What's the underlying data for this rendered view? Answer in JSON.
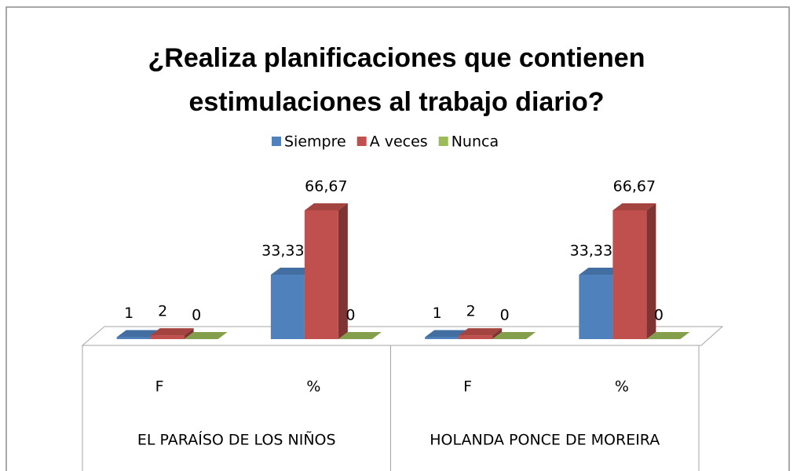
{
  "chart_data": {
    "type": "bar3d",
    "title": [
      "¿Realiza planificaciones que contienen",
      "estimulaciones al trabajo diario?"
    ],
    "categories": [
      "F",
      "%",
      "F",
      "%"
    ],
    "groups": [
      "EL PARAÍSO DE LOS NIÑOS",
      "HOLANDA PONCE DE MOREIRA"
    ],
    "series": [
      {
        "name": "Siempre",
        "color": "#4f81bd",
        "values": [
          1,
          33.33,
          1,
          33.33
        ],
        "value_labels": [
          "1",
          "33,33",
          "1",
          "33,33"
        ]
      },
      {
        "name": "A veces",
        "color": "#c0504d",
        "values": [
          2,
          66.67,
          2,
          66.67
        ],
        "value_labels": [
          "2",
          "66,67",
          "2",
          "66,67"
        ]
      },
      {
        "name": "Nunca",
        "color": "#9bbb59",
        "values": [
          0,
          0,
          0,
          0
        ],
        "value_labels": [
          "0",
          "0",
          "0",
          "0"
        ]
      }
    ],
    "legend": "top"
  }
}
